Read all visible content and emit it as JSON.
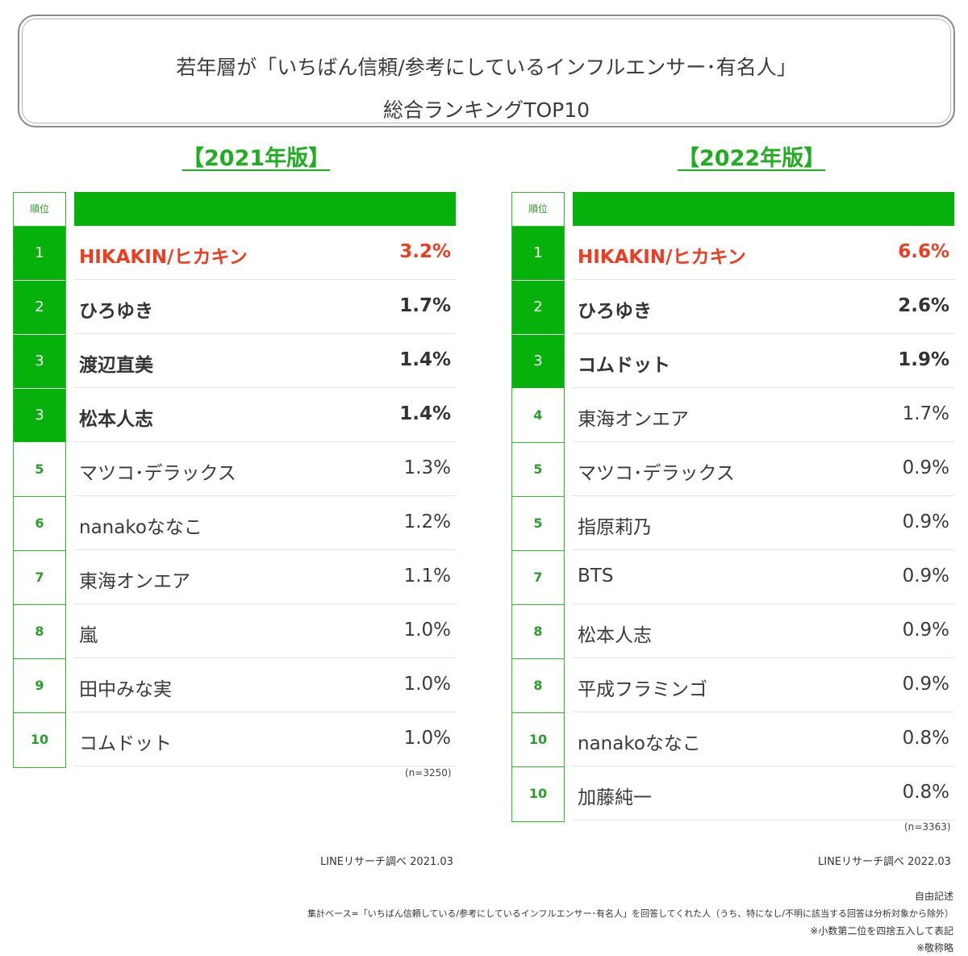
{
  "title": {
    "line1": "若年層が「いちばん信頼/参考にしているインフルエンサー･有名人」",
    "line2": "総合ランキングTOP10"
  },
  "colors": {
    "accent": "#07b10b",
    "highlight": "#f03c1e",
    "heading": "#1fae1f"
  },
  "rank_header": "順位",
  "chart_data": [
    {
      "type": "table",
      "title": "【2021年版】",
      "rows": [
        {
          "rank": "1",
          "name": "HIKAKIN/ヒカキン",
          "value": "3.2%"
        },
        {
          "rank": "2",
          "name": "ひろゆき",
          "value": "1.7%"
        },
        {
          "rank": "3",
          "name": "渡辺直美",
          "value": "1.4%"
        },
        {
          "rank": "3",
          "name": "松本人志",
          "value": "1.4%"
        },
        {
          "rank": "5",
          "name": "マツコ･デラックス",
          "value": "1.3%"
        },
        {
          "rank": "6",
          "name": "nanakoななこ",
          "value": "1.2%"
        },
        {
          "rank": "7",
          "name": "東海オンエア",
          "value": "1.1%"
        },
        {
          "rank": "8",
          "name": "嵐",
          "value": "1.0%"
        },
        {
          "rank": "9",
          "name": "田中みな実",
          "value": "1.0%"
        },
        {
          "rank": "10",
          "name": "コムドット",
          "value": "1.0%"
        }
      ],
      "n": "(n=3250)",
      "source": "LINEリサーチ調べ 2021.03"
    },
    {
      "type": "table",
      "title": "【2022年版】",
      "rows": [
        {
          "rank": "1",
          "name": "HIKAKIN/ヒカキン",
          "value": "6.6%"
        },
        {
          "rank": "2",
          "name": "ひろゆき",
          "value": "2.6%"
        },
        {
          "rank": "3",
          "name": "コムドット",
          "value": "1.9%"
        },
        {
          "rank": "4",
          "name": "東海オンエア",
          "value": "1.7%"
        },
        {
          "rank": "5",
          "name": "マツコ･デラックス",
          "value": "0.9%"
        },
        {
          "rank": "5",
          "name": "指原莉乃",
          "value": "0.9%"
        },
        {
          "rank": "7",
          "name": "BTS",
          "value": "0.9%"
        },
        {
          "rank": "8",
          "name": "松本人志",
          "value": "0.9%"
        },
        {
          "rank": "8",
          "name": "平成フラミンゴ",
          "value": "0.9%"
        },
        {
          "rank": "10",
          "name": "nanakoななこ",
          "value": "0.8%"
        },
        {
          "rank": "10",
          "name": "加藤純一",
          "value": "0.8%"
        }
      ],
      "n": "(n=3363)",
      "source": "LINEリサーチ調べ 2022.03"
    }
  ],
  "footnotes": [
    "自由記述",
    "集計ベース=「いちばん信頼している/参考にしているインフルエンサー･有名人」を回答してくれた人（うち、特になし/不明に該当する回答は分析対象から除外）",
    "※小数第二位を四捨五入して表記",
    "※敬称略"
  ]
}
